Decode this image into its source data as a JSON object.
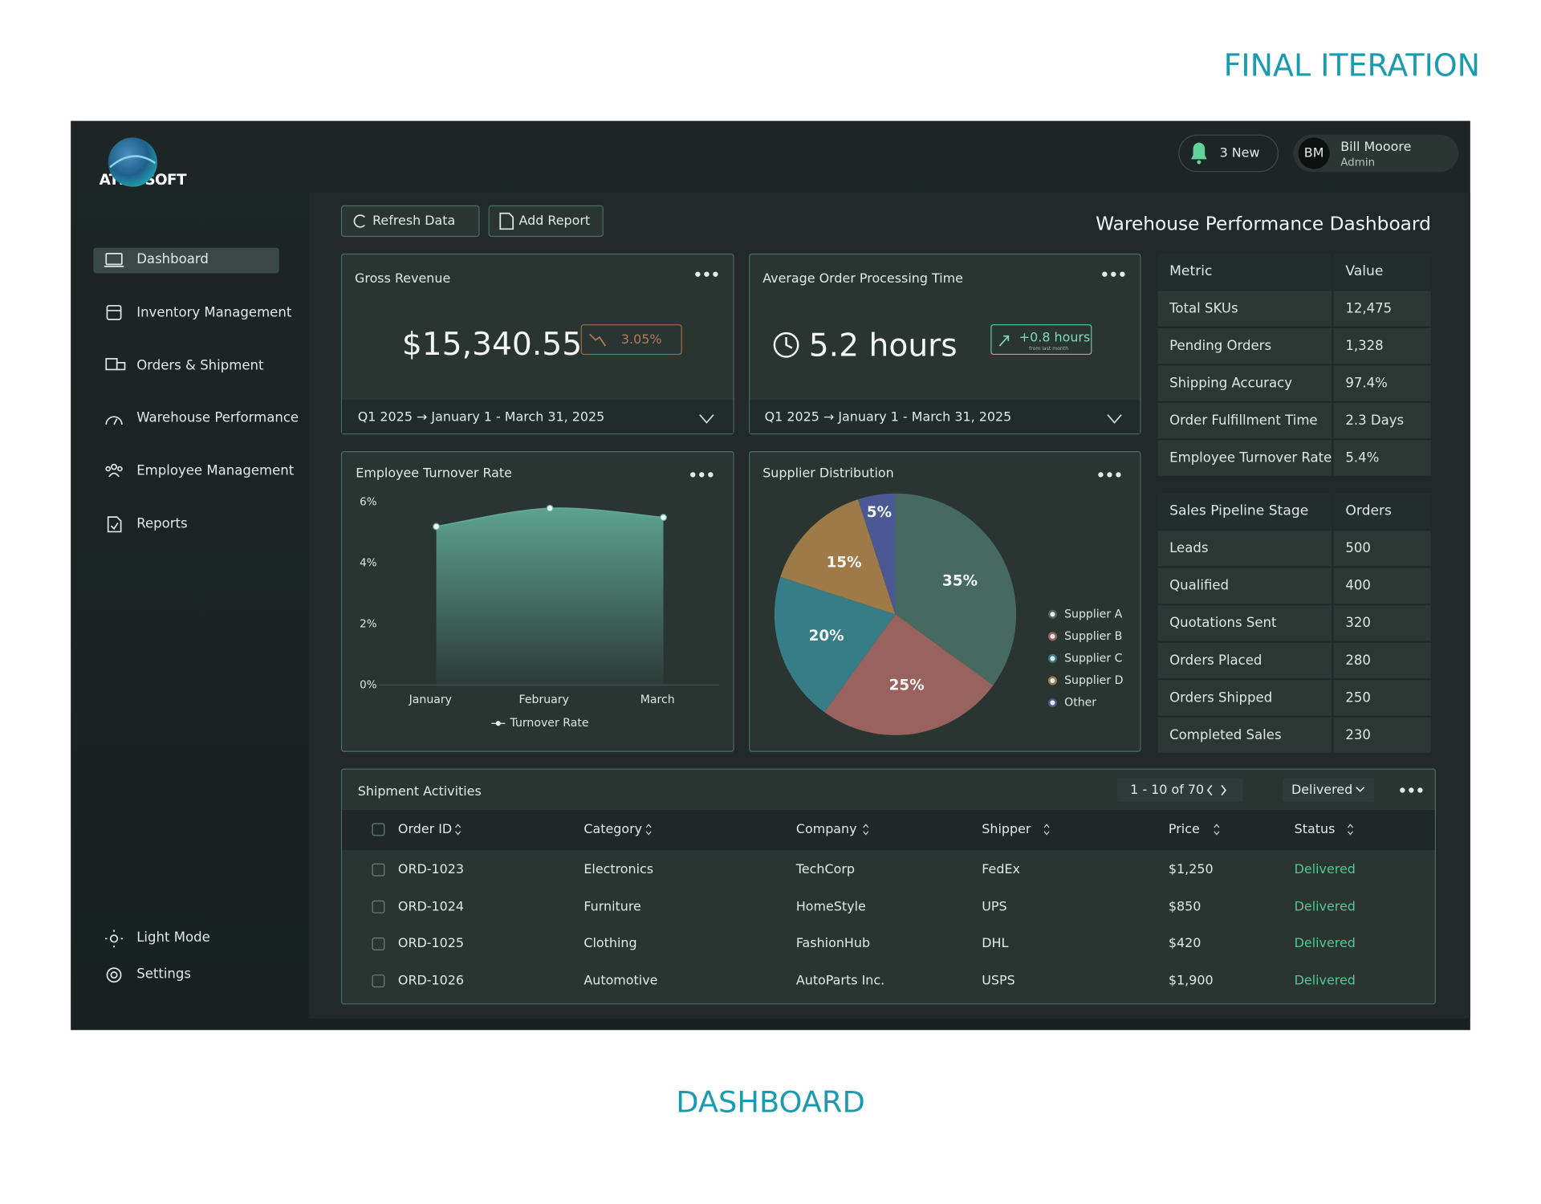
{
  "header": {
    "title": "FINAL ITERATION"
  },
  "footer": {
    "caption": "DASHBOARD"
  },
  "app": {
    "brand": "ATMOSOFT",
    "notifications": "3 New",
    "user": {
      "initials": "BM",
      "name": "Bill Mooore",
      "role": "Admin"
    }
  },
  "sidebar": {
    "nav": [
      "Dashboard",
      "Inventory Management",
      "Orders & Shipment",
      "Warehouse Performance",
      "Employee Management",
      "Reports"
    ],
    "bottom": [
      "Light Mode",
      "Settings"
    ]
  },
  "toolbar": {
    "buttons": [
      "Refresh Data",
      "Add Report"
    ],
    "title": "Warehouse Performance Dashboard"
  },
  "kpi_cards": [
    {
      "title": "Gross Revenue",
      "value": "$15,340.55",
      "change": "3.05%",
      "period": "Q1 2025 → January 1 - March 31, 2025"
    },
    {
      "title": "Average Order Processing Time",
      "value": "5.2 hours",
      "change": "+0.8 hours",
      "change_note": "from last month",
      "period": "Q1 2025 → January 1 - March 31, 2025"
    }
  ],
  "turnover_chart": {
    "type": "area",
    "title": "Employee Turnover Rate",
    "categories": [
      "January",
      "February",
      "March"
    ],
    "series": [
      {
        "name": "Turnover Rate",
        "color": "#5fa893",
        "values": [
          5.2,
          5.8,
          5.5
        ]
      }
    ],
    "ylim": [
      0,
      6
    ],
    "yticks": [
      {
        "value": 0,
        "label": "0%"
      },
      {
        "value": 2,
        "label": "2%"
      },
      {
        "value": 4,
        "label": "4%"
      },
      {
        "value": 6,
        "label": "6%"
      }
    ],
    "grid": false
  },
  "supplier_chart": {
    "type": "pie",
    "title": "Supplier Distribution",
    "categories": [
      "Supplier A",
      "Supplier B",
      "Supplier C",
      "Supplier D",
      "Other"
    ],
    "values": [
      35,
      25,
      20,
      15,
      5
    ],
    "value_labels": [
      "35%",
      "25%",
      "20%",
      "15%",
      "5%"
    ],
    "colors": [
      "#476a60",
      "#98625e",
      "#377d88",
      "#9d7a48",
      "#4a5893"
    ]
  },
  "metrics_table": {
    "headers": [
      "Metric",
      "Value"
    ],
    "rows": [
      [
        "Total SKUs",
        "12,475"
      ],
      [
        "Pending Orders",
        "1,328"
      ],
      [
        "Shipping Accuracy",
        "97.4%"
      ],
      [
        "Order Fulfillment Time",
        "2.3 Days"
      ],
      [
        "Employee Turnover Rate",
        "5.4%"
      ]
    ]
  },
  "pipeline_table": {
    "headers": [
      "Sales Pipeline Stage",
      "Orders"
    ],
    "rows": [
      [
        "Leads",
        "500"
      ],
      [
        "Qualified",
        "400"
      ],
      [
        "Quotations Sent",
        "320"
      ],
      [
        "Orders Placed",
        "280"
      ],
      [
        "Orders Shipped",
        "250"
      ],
      [
        "Completed Sales",
        "230"
      ]
    ]
  },
  "shipments": {
    "title": "Shipment Activities",
    "pagination": "1 - 10 of 70",
    "filter": "Delivered",
    "columns": [
      "Order ID",
      "Category",
      "Company",
      "Shipper",
      "Price",
      "Status"
    ],
    "rows": [
      [
        "ORD-1023",
        "Electronics",
        "TechCorp",
        "FedEx",
        "$1,250",
        "Delivered"
      ],
      [
        "ORD-1024",
        "Furniture",
        "HomeStyle",
        "UPS",
        "$850",
        "Delivered"
      ],
      [
        "ORD-1025",
        "Clothing",
        "FashionHub",
        "DHL",
        "$420",
        "Delivered"
      ],
      [
        "ORD-1026",
        "Automotive",
        "AutoParts Inc.",
        "USPS",
        "$1,900",
        "Delivered"
      ]
    ]
  }
}
